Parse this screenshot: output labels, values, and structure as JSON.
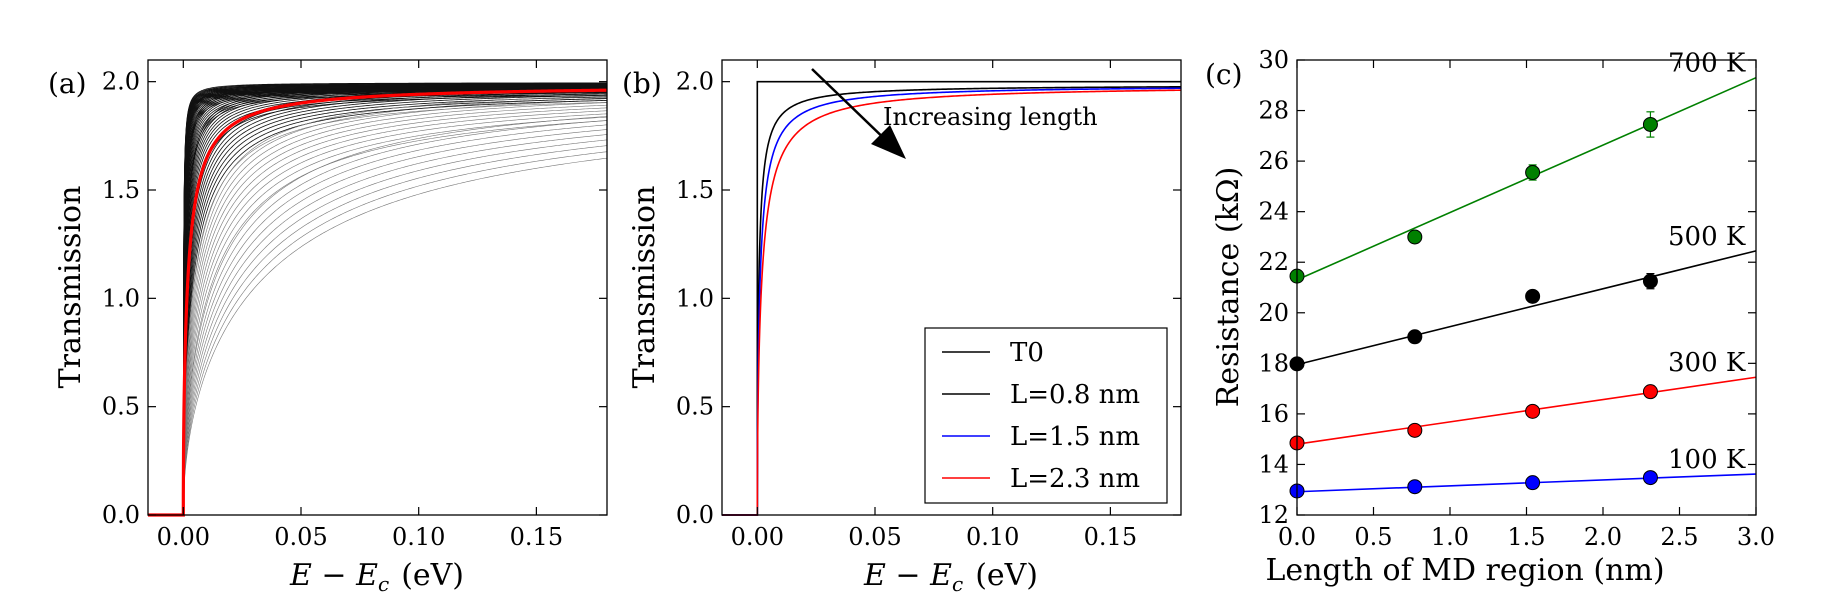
{
  "chart_data": [
    {
      "panel": "(a)",
      "type": "line",
      "xlabel_var": "E − E",
      "xlabel_sub": "c",
      "xlabel_unit": "(eV)",
      "ylabel": "Transmission",
      "xlim": [
        -0.015,
        0.18
      ],
      "ylim": [
        0,
        2.1
      ],
      "xticks": [
        0.0,
        0.05,
        0.1,
        0.15
      ],
      "xtick_labels": [
        "0.00",
        "0.05",
        "0.10",
        "0.15"
      ],
      "yticks": [
        0.0,
        0.5,
        1.0,
        1.5,
        2.0
      ],
      "ytick_labels": [
        "0.0",
        "0.5",
        "1.0",
        "1.5",
        "2.0"
      ],
      "grid": false,
      "ensemble_color": "#000000",
      "mean_color": "#ff0000",
      "ensemble_scale_range": [
        0.0003,
        0.085
      ],
      "ensemble_count": 80,
      "mean_scale": 0.0045
    },
    {
      "panel": "(b)",
      "type": "line",
      "xlabel_var": "E − E",
      "xlabel_sub": "c",
      "xlabel_unit": "(eV)",
      "ylabel": "Transmission",
      "xlim": [
        -0.015,
        0.18
      ],
      "ylim": [
        0,
        2.1
      ],
      "xticks": [
        0.0,
        0.05,
        0.1,
        0.15
      ],
      "xtick_labels": [
        "0.00",
        "0.05",
        "0.10",
        "0.15"
      ],
      "yticks": [
        0.0,
        0.5,
        1.0,
        1.5,
        2.0
      ],
      "ytick_labels": [
        "0.0",
        "0.5",
        "1.0",
        "1.5",
        "2.0"
      ],
      "grid": false,
      "annotation": "Increasing length",
      "legend_position": "lower right",
      "series": [
        {
          "name": "T0",
          "color": "#000000",
          "scale": 0
        },
        {
          "name": "L=0.8 nm",
          "color": "#000000",
          "scale": 0.0016
        },
        {
          "name": "L=1.5 nm",
          "color": "#0000ff",
          "scale": 0.0028
        },
        {
          "name": "L=2.3 nm",
          "color": "#ff0000",
          "scale": 0.0045
        }
      ]
    },
    {
      "panel": "(c)",
      "type": "scatter",
      "xlabel": "Length of MD region  (nm)",
      "ylabel": "Resistance  (kΩ)",
      "xlim": [
        0,
        3.0
      ],
      "ylim": [
        12,
        30
      ],
      "xticks": [
        0.0,
        0.5,
        1.0,
        1.5,
        2.0,
        2.5,
        3.0
      ],
      "xtick_labels": [
        "0.0",
        "0.5",
        "1.0",
        "1.5",
        "2.0",
        "2.5",
        "3.0"
      ],
      "yticks": [
        12,
        14,
        16,
        18,
        20,
        22,
        24,
        26,
        28,
        30
      ],
      "ytick_labels": [
        "12",
        "14",
        "16",
        "18",
        "20",
        "22",
        "24",
        "26",
        "28",
        "30"
      ],
      "grid": false,
      "x": [
        0.0,
        0.77,
        1.54,
        2.31
      ],
      "series": [
        {
          "name": "100 K",
          "color": "#0000ff",
          "values": [
            12.95,
            13.12,
            13.28,
            13.48
          ],
          "errors": [
            0.05,
            0.05,
            0.06,
            0.08
          ],
          "fit": [
            12.92,
            13.62
          ]
        },
        {
          "name": "300 K",
          "color": "#ff0000",
          "values": [
            14.85,
            15.35,
            16.1,
            16.88
          ],
          "errors": [
            0.05,
            0.06,
            0.08,
            0.1
          ],
          "fit": [
            14.8,
            17.45
          ]
        },
        {
          "name": "500 K",
          "color": "#000000",
          "values": [
            17.98,
            19.05,
            20.65,
            21.25
          ],
          "errors": [
            0.08,
            0.1,
            0.12,
            0.3
          ],
          "fit": [
            17.95,
            22.45
          ]
        },
        {
          "name": "700 K",
          "color": "#008000",
          "values": [
            21.45,
            23.0,
            25.55,
            27.45
          ],
          "errors": [
            0.1,
            0.15,
            0.3,
            0.5
          ],
          "fit": [
            21.3,
            29.3
          ]
        }
      ]
    }
  ]
}
